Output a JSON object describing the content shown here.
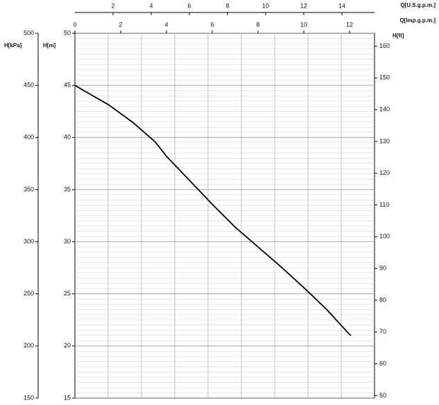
{
  "chart_data": {
    "type": "line",
    "x_label": "Q[Imp.g.p.m.]",
    "x2_label": "Q[U.S.g.p.m.]",
    "y_label": "H[m]",
    "y2_label": "H[ft]",
    "y3_label": "H[kPa]",
    "x": [
      0,
      1.5,
      2.5,
      3.5,
      4,
      5,
      6,
      7,
      8,
      9,
      10,
      11,
      12,
      12.06
    ],
    "series": [
      {
        "color": "#000000",
        "values": [
          45,
          43.1,
          41.5,
          39.6,
          38.2,
          35.9,
          33.6,
          31.4,
          29.5,
          27.6,
          25.6,
          23.5,
          21.1,
          21.0
        ]
      }
    ],
    "xlim": [
      0,
      13.09
    ],
    "xticks": [
      0,
      2,
      4,
      6,
      8,
      10,
      12
    ],
    "x2lim": [
      0,
      15.71
    ],
    "x2ticks": [
      2,
      4,
      6,
      8,
      10,
      12,
      14
    ],
    "ylim": [
      15,
      50
    ],
    "yticks": [
      15,
      20,
      25,
      30,
      35,
      40,
      45,
      50
    ],
    "y2lim": [
      49.21,
      164.04
    ],
    "y2ticks": [
      50,
      60,
      70,
      80,
      90,
      100,
      110,
      120,
      130,
      140,
      150,
      160
    ],
    "y3lim": [
      150,
      500
    ],
    "y3ticks": [
      150,
      200,
      250,
      300,
      350,
      400,
      450,
      500
    ],
    "grid": true
  }
}
